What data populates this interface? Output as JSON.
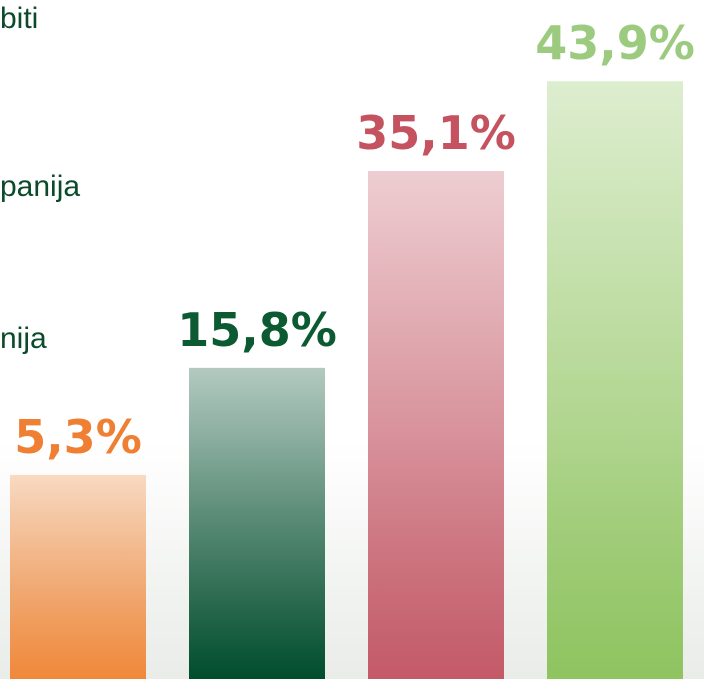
{
  "chart_data": {
    "type": "bar",
    "annotations": [
      "biti",
      "panija",
      "nija"
    ],
    "values": [
      5.3,
      15.8,
      35.1,
      43.9
    ],
    "value_labels": [
      "5,3%",
      "15,8%",
      "35,1%",
      "43,9%"
    ],
    "colors": [
      "#f0883a",
      "#004d2d",
      "#c45a68",
      "#8fc460"
    ],
    "label_colors": [
      "#ef7f32",
      "#0b5a32",
      "#c4525f",
      "#9ccb7f"
    ]
  }
}
